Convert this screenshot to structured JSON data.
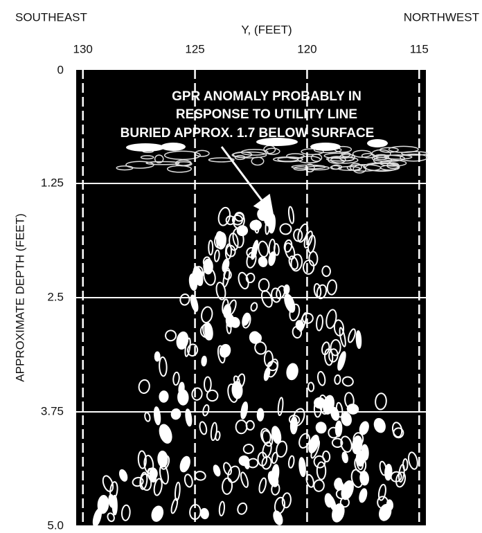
{
  "chart_data": {
    "type": "radargram",
    "x_label": "Y, (FEET)",
    "left_label": "SOUTHEAST",
    "right_label": "NORTHWEST",
    "y_label": "APPROXIMATE DEPTH (FEET)",
    "annotation": [
      "GPR ANOMALY PROBABLY IN",
      "RESPONSE TO UTILITY LINE",
      "BURIED APPROX. 1.7 BELOW SURFACE"
    ],
    "xlim": [
      130.3,
      114.7
    ],
    "xticks": [
      130,
      125,
      120,
      115
    ],
    "ylim": [
      0,
      5
    ],
    "yticks": [
      0,
      1.25,
      2.5,
      3.75,
      {
        "value": 5,
        "label": "5.0"
      }
    ],
    "grid": true
  }
}
